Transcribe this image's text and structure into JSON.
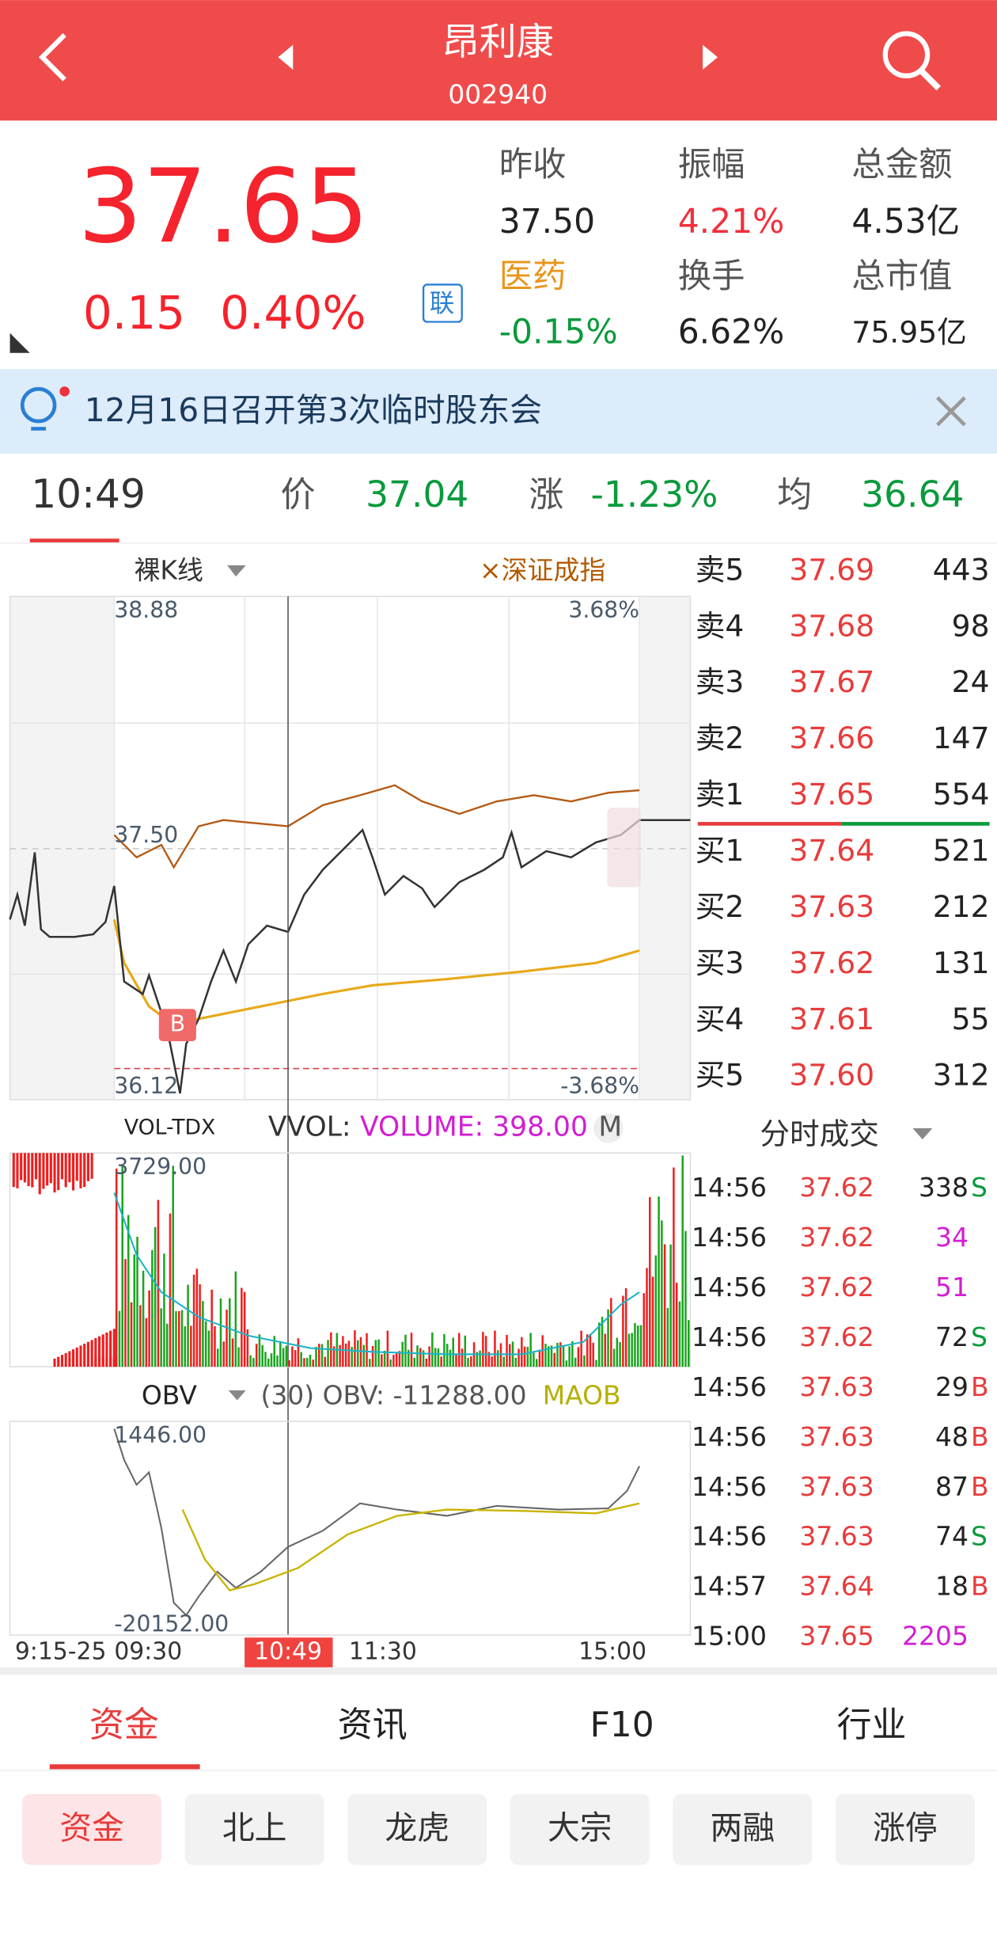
{
  "header": {
    "title": "昂利康",
    "code": "002940"
  },
  "quote": {
    "price": "37.65",
    "change": "0.15",
    "change_pct": "0.40%",
    "tag": "联",
    "stats": [
      {
        "label": "昨收",
        "value": "37.50"
      },
      {
        "label": "振幅",
        "value": "4.21%"
      },
      {
        "label": "总金额",
        "value": "4.53亿"
      },
      {
        "label": "医药",
        "value": "-0.15%"
      },
      {
        "label": "换手",
        "value": "6.62%"
      },
      {
        "label": "总市值",
        "value": "75.95亿"
      }
    ]
  },
  "notice": {
    "text": "12月16日召开第3次临时股东会"
  },
  "crosshair": {
    "time": "10:49",
    "price_label": "价",
    "price": "37.04",
    "change_label": "涨",
    "change": "-1.23%",
    "avg_label": "均",
    "avg": "36.64"
  },
  "chart": {
    "mode": "裸K线",
    "index": "×深证成指",
    "y_top": "38.88",
    "y_top_pct": "3.68%",
    "prev_close": "37.50",
    "y_bottom": "36.12",
    "y_bottom_pct": "-3.68%",
    "marker": "B",
    "volume": {
      "indicator": "VOL-TDX",
      "label": "VVOL:",
      "value": "VOLUME: 398.00",
      "unit": "M",
      "max": "3729.00"
    },
    "obv": {
      "name": "OBV",
      "params": "(30) OBV: -11288.00",
      "maob": "MAOB",
      "max": "1446.00",
      "min": "-20152.00"
    },
    "x_labels": [
      "9:15-25",
      "09:30",
      "10:49",
      "11:30",
      "15:00"
    ]
  },
  "order_book": {
    "asks": [
      [
        "卖5",
        "37.69",
        "443"
      ],
      [
        "卖4",
        "37.68",
        "98"
      ],
      [
        "卖3",
        "37.67",
        "24"
      ],
      [
        "卖2",
        "37.66",
        "147"
      ],
      [
        "卖1",
        "37.65",
        "554"
      ]
    ],
    "bids": [
      [
        "买1",
        "37.64",
        "521"
      ],
      [
        "买2",
        "37.63",
        "212"
      ],
      [
        "买3",
        "37.62",
        "131"
      ],
      [
        "买4",
        "37.61",
        "55"
      ],
      [
        "买5",
        "37.60",
        "312"
      ]
    ]
  },
  "trades": {
    "title": "分时成交",
    "rows": [
      {
        "time": "14:56",
        "price": "37.62",
        "volume": "338",
        "flag": "S"
      },
      {
        "time": "14:56",
        "price": "37.62",
        "volume": "34"
      },
      {
        "time": "14:56",
        "price": "37.62",
        "volume": "51"
      },
      {
        "time": "14:56",
        "price": "37.62",
        "volume": "72",
        "flag": "S"
      },
      {
        "time": "14:56",
        "price": "37.63",
        "volume": "29",
        "flag": "B"
      },
      {
        "time": "14:56",
        "price": "37.63",
        "volume": "48",
        "flag": "B"
      },
      {
        "time": "14:56",
        "price": "37.63",
        "volume": "87",
        "flag": "B"
      },
      {
        "time": "14:56",
        "price": "37.63",
        "volume": "74",
        "flag": "S"
      },
      {
        "time": "14:57",
        "price": "37.64",
        "volume": "18",
        "flag": "B"
      },
      {
        "time": "15:00",
        "price": "37.65",
        "volume": "2205"
      }
    ]
  },
  "tabs": [
    "资金",
    "资讯",
    "F10",
    "行业"
  ],
  "subtabs": [
    "资金",
    "北上",
    "龙虎",
    "大宗",
    "两融",
    "涨停"
  ]
}
